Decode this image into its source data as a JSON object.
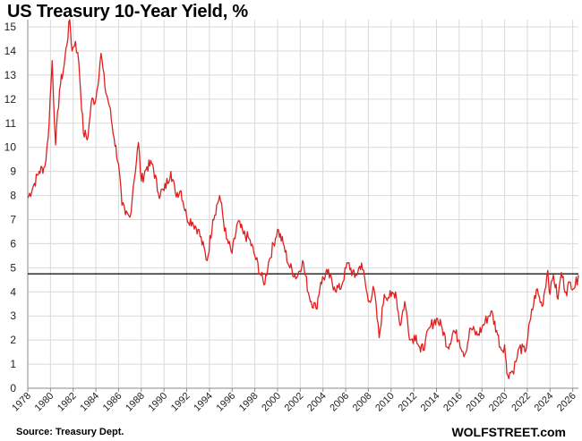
{
  "chart_data": {
    "type": "line",
    "title": "US Treasury 10-Year Yield, %",
    "xlabel": "",
    "ylabel": "",
    "xlim": [
      1978,
      2026.5
    ],
    "ylim": [
      0,
      15.3
    ],
    "y_ticks": [
      0,
      1,
      2,
      3,
      4,
      5,
      6,
      7,
      8,
      9,
      10,
      11,
      12,
      13,
      14,
      15
    ],
    "x_ticks": [
      1978,
      1980,
      1982,
      1984,
      1986,
      1988,
      1990,
      1992,
      1994,
      1996,
      1998,
      2000,
      2002,
      2004,
      2006,
      2008,
      2010,
      2012,
      2014,
      2016,
      2018,
      2020,
      2022,
      2024,
      2026
    ],
    "grid": true,
    "legend": "none",
    "series": [
      {
        "color": "#e02020",
        "points": [
          [
            1978.0,
            7.9
          ],
          [
            1978.5,
            8.4
          ],
          [
            1979.0,
            9.0
          ],
          [
            1979.5,
            9.2
          ],
          [
            1979.8,
            10.4
          ],
          [
            1980.15,
            13.6
          ],
          [
            1980.45,
            10.1
          ],
          [
            1980.8,
            12.4
          ],
          [
            1981.2,
            13.4
          ],
          [
            1981.7,
            15.3
          ],
          [
            1981.9,
            14.0
          ],
          [
            1982.2,
            14.4
          ],
          [
            1982.5,
            13.5
          ],
          [
            1982.9,
            10.6
          ],
          [
            1983.3,
            10.4
          ],
          [
            1983.6,
            11.9
          ],
          [
            1984.0,
            12.0
          ],
          [
            1984.45,
            13.9
          ],
          [
            1984.8,
            12.5
          ],
          [
            1985.2,
            11.7
          ],
          [
            1985.6,
            10.4
          ],
          [
            1986.0,
            9.3
          ],
          [
            1986.3,
            7.6
          ],
          [
            1986.6,
            7.2
          ],
          [
            1987.0,
            7.1
          ],
          [
            1987.3,
            8.4
          ],
          [
            1987.75,
            10.2
          ],
          [
            1988.0,
            8.6
          ],
          [
            1988.5,
            9.2
          ],
          [
            1989.0,
            9.3
          ],
          [
            1989.5,
            8.1
          ],
          [
            1990.0,
            8.2
          ],
          [
            1990.6,
            9.0
          ],
          [
            1991.0,
            8.1
          ],
          [
            1991.5,
            8.2
          ],
          [
            1992.0,
            7.1
          ],
          [
            1992.5,
            6.9
          ],
          [
            1993.0,
            6.6
          ],
          [
            1993.8,
            5.3
          ],
          [
            1994.3,
            7.0
          ],
          [
            1994.9,
            8.0
          ],
          [
            1995.5,
            6.2
          ],
          [
            1996.0,
            5.6
          ],
          [
            1996.5,
            6.9
          ],
          [
            1997.0,
            6.4
          ],
          [
            1997.5,
            6.2
          ],
          [
            1998.0,
            5.5
          ],
          [
            1998.8,
            4.3
          ],
          [
            1999.2,
            5.2
          ],
          [
            2000.0,
            6.6
          ],
          [
            2000.5,
            6.0
          ],
          [
            2001.0,
            5.1
          ],
          [
            2001.7,
            4.6
          ],
          [
            2002.2,
            5.3
          ],
          [
            2002.8,
            3.8
          ],
          [
            2003.4,
            3.3
          ],
          [
            2003.8,
            4.4
          ],
          [
            2004.4,
            4.8
          ],
          [
            2005.0,
            4.2
          ],
          [
            2005.5,
            4.1
          ],
          [
            2006.2,
            5.2
          ],
          [
            2006.8,
            4.6
          ],
          [
            2007.4,
            5.2
          ],
          [
            2008.0,
            3.6
          ],
          [
            2008.5,
            4.1
          ],
          [
            2008.95,
            2.1
          ],
          [
            2009.4,
            3.9
          ],
          [
            2010.0,
            3.8
          ],
          [
            2010.4,
            4.0
          ],
          [
            2010.8,
            2.6
          ],
          [
            2011.2,
            3.6
          ],
          [
            2011.7,
            2.0
          ],
          [
            2012.2,
            2.2
          ],
          [
            2012.6,
            1.5
          ],
          [
            2013.0,
            1.9
          ],
          [
            2013.5,
            2.6
          ],
          [
            2014.0,
            2.9
          ],
          [
            2014.5,
            2.5
          ],
          [
            2015.0,
            1.7
          ],
          [
            2015.5,
            2.4
          ],
          [
            2016.0,
            2.0
          ],
          [
            2016.5,
            1.4
          ],
          [
            2017.0,
            2.5
          ],
          [
            2017.6,
            2.2
          ],
          [
            2018.0,
            2.5
          ],
          [
            2018.8,
            3.2
          ],
          [
            2019.3,
            2.4
          ],
          [
            2019.7,
            1.6
          ],
          [
            2020.0,
            1.8
          ],
          [
            2020.2,
            0.6
          ],
          [
            2020.7,
            0.7
          ],
          [
            2021.0,
            1.1
          ],
          [
            2021.3,
            1.7
          ],
          [
            2021.8,
            1.5
          ],
          [
            2022.3,
            2.9
          ],
          [
            2022.8,
            4.1
          ],
          [
            2023.3,
            3.4
          ],
          [
            2023.8,
            4.9
          ],
          [
            2024.0,
            3.9
          ],
          [
            2024.3,
            4.7
          ],
          [
            2024.7,
            3.7
          ],
          [
            2025.0,
            4.8
          ],
          [
            2025.4,
            4.0
          ],
          [
            2025.8,
            4.4
          ],
          [
            2026.2,
            4.2
          ],
          [
            2026.5,
            4.7
          ]
        ]
      }
    ],
    "reference_line": {
      "y": 4.75,
      "color": "#000000"
    }
  },
  "footer": {
    "source": "Source: Treasury Dept.",
    "brand": "WOLFSTREET.com"
  }
}
